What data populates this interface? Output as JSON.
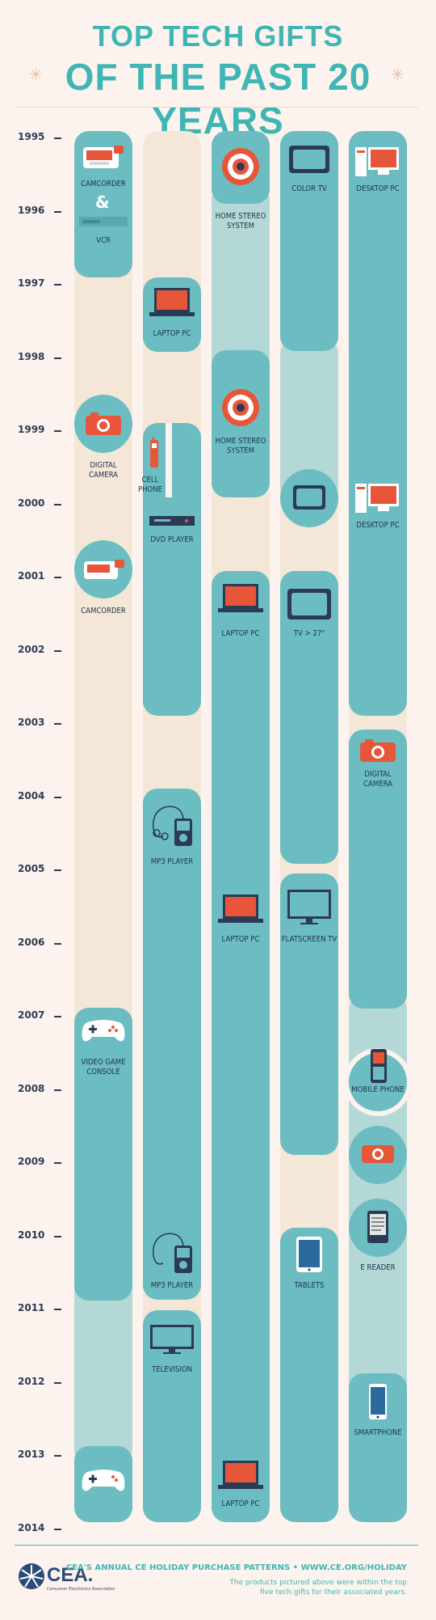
{
  "header": {
    "title_line1": "TOP TECH GIFTS",
    "title_line2": "OF THE PAST 20 YEARS",
    "star": "✳"
  },
  "years": [
    "1995",
    "1996",
    "1997",
    "1998",
    "1999",
    "2000",
    "2001",
    "2002",
    "2003",
    "2004",
    "2005",
    "2006",
    "2007",
    "2008",
    "2009",
    "2010",
    "2011",
    "2012",
    "2013",
    "2014"
  ],
  "items": {
    "col1": {
      "camcorder_1995": "CAMCORDER",
      "amp": "&",
      "vcr_1996": "VCR",
      "digital_camera_1999": "DIGITAL CAMERA",
      "camcorder_2001": "CAMCORDER",
      "video_game_console_2007": "VIDEO GAME CONSOLE"
    },
    "col2": {
      "laptop_1997": "LAPTOP PC",
      "cell_phone_1999": "CELL PHONE",
      "dvd_player_2000": "DVD PLAYER",
      "mp3_player_2004": "MP3 PLAYER",
      "mp3_player_2010": "MP3 PLAYER",
      "television_2011": "TELEVISION"
    },
    "col3": {
      "home_stereo_1995": "HOME STEREO SYSTEM",
      "home_stereo_1998": "HOME STEREO SYSTEM",
      "laptop_2001": "LAPTOP PC",
      "laptop_2005": "LAPTOP PC",
      "laptop_2013": "LAPTOP PC"
    },
    "col4": {
      "color_tv_1995": "COLOR TV",
      "tv_2001": "TV > 27\"",
      "flatscreen_2005": "FLATSCREEN TV",
      "tablets_2010": "TABLETS"
    },
    "col5": {
      "desktop_1995": "DESKTOP PC",
      "desktop_2000": "DESKTOP PC",
      "digital_camera_2003": "DIGITAL CAMERA",
      "mobile_phone_2008": "MOBILE PHONE",
      "e_reader_2010": "E READER",
      "smartphone_2012": "SMARTPHONE"
    }
  },
  "footer": {
    "title": "CEA'S ANNUAL CE HOLIDAY PURCHASE PATTERNS • WWW.CE.ORG/HOLIDAY",
    "note": "The products pictured above were within the top five tech gifts for their associated years.",
    "logo": "CEA.",
    "logo_sub": "Consumer Electronics Association"
  },
  "colors": {
    "teal": "#6bbdc1",
    "title": "#3fb6b4",
    "cream": "#f5e7d8",
    "pale_teal": "#b4d8d6",
    "accent_orange": "#e8563a",
    "navy": "#2b3b55"
  }
}
